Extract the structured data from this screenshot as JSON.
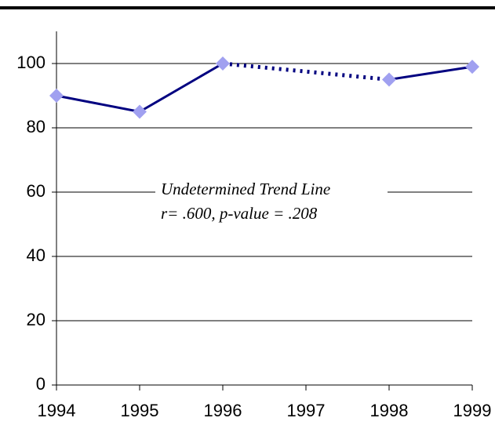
{
  "chart_data": {
    "type": "line",
    "annotations": [
      "Undetermined Trend Line",
      "r= .600, p-value = .208"
    ],
    "x": [
      1994,
      1995,
      1996,
      1998,
      1999
    ],
    "xlim": [
      1994,
      1999
    ],
    "xticks": [
      1994,
      1995,
      1996,
      1997,
      1998,
      1999
    ],
    "ylim": [
      0,
      110
    ],
    "yticks": [
      0,
      20,
      40,
      60,
      80,
      100
    ],
    "grid": true,
    "series": [
      {
        "color": "#000080",
        "marker_color": "#a0a0f0",
        "values": [
          90,
          85,
          100,
          95,
          99
        ],
        "segment_styles": [
          "solid",
          "solid",
          "dashed",
          "solid"
        ]
      }
    ]
  }
}
